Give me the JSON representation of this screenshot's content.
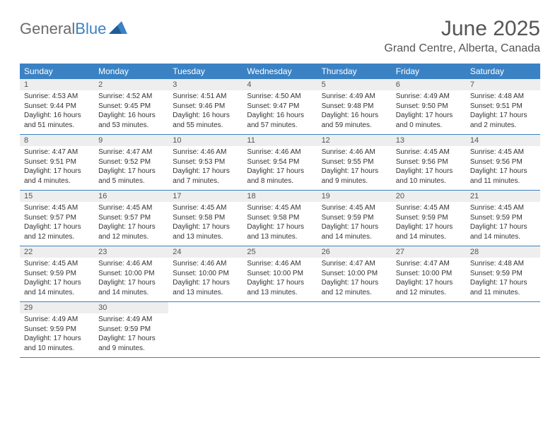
{
  "logo": {
    "text1": "General",
    "text2": "Blue"
  },
  "title": "June 2025",
  "location": "Grand Centre, Alberta, Canada",
  "colors": {
    "header_bg": "#3b82c4",
    "header_text": "#ffffff",
    "daynum_bg": "#eeeeee",
    "text": "#333333",
    "logo_gray": "#6b6b6b",
    "logo_blue": "#3b82c4"
  },
  "day_headers": [
    "Sunday",
    "Monday",
    "Tuesday",
    "Wednesday",
    "Thursday",
    "Friday",
    "Saturday"
  ],
  "weeks": [
    [
      {
        "n": "1",
        "sr": "Sunrise: 4:53 AM",
        "ss": "Sunset: 9:44 PM",
        "dl": "Daylight: 16 hours and 51 minutes."
      },
      {
        "n": "2",
        "sr": "Sunrise: 4:52 AM",
        "ss": "Sunset: 9:45 PM",
        "dl": "Daylight: 16 hours and 53 minutes."
      },
      {
        "n": "3",
        "sr": "Sunrise: 4:51 AM",
        "ss": "Sunset: 9:46 PM",
        "dl": "Daylight: 16 hours and 55 minutes."
      },
      {
        "n": "4",
        "sr": "Sunrise: 4:50 AM",
        "ss": "Sunset: 9:47 PM",
        "dl": "Daylight: 16 hours and 57 minutes."
      },
      {
        "n": "5",
        "sr": "Sunrise: 4:49 AM",
        "ss": "Sunset: 9:48 PM",
        "dl": "Daylight: 16 hours and 59 minutes."
      },
      {
        "n": "6",
        "sr": "Sunrise: 4:49 AM",
        "ss": "Sunset: 9:50 PM",
        "dl": "Daylight: 17 hours and 0 minutes."
      },
      {
        "n": "7",
        "sr": "Sunrise: 4:48 AM",
        "ss": "Sunset: 9:51 PM",
        "dl": "Daylight: 17 hours and 2 minutes."
      }
    ],
    [
      {
        "n": "8",
        "sr": "Sunrise: 4:47 AM",
        "ss": "Sunset: 9:51 PM",
        "dl": "Daylight: 17 hours and 4 minutes."
      },
      {
        "n": "9",
        "sr": "Sunrise: 4:47 AM",
        "ss": "Sunset: 9:52 PM",
        "dl": "Daylight: 17 hours and 5 minutes."
      },
      {
        "n": "10",
        "sr": "Sunrise: 4:46 AM",
        "ss": "Sunset: 9:53 PM",
        "dl": "Daylight: 17 hours and 7 minutes."
      },
      {
        "n": "11",
        "sr": "Sunrise: 4:46 AM",
        "ss": "Sunset: 9:54 PM",
        "dl": "Daylight: 17 hours and 8 minutes."
      },
      {
        "n": "12",
        "sr": "Sunrise: 4:46 AM",
        "ss": "Sunset: 9:55 PM",
        "dl": "Daylight: 17 hours and 9 minutes."
      },
      {
        "n": "13",
        "sr": "Sunrise: 4:45 AM",
        "ss": "Sunset: 9:56 PM",
        "dl": "Daylight: 17 hours and 10 minutes."
      },
      {
        "n": "14",
        "sr": "Sunrise: 4:45 AM",
        "ss": "Sunset: 9:56 PM",
        "dl": "Daylight: 17 hours and 11 minutes."
      }
    ],
    [
      {
        "n": "15",
        "sr": "Sunrise: 4:45 AM",
        "ss": "Sunset: 9:57 PM",
        "dl": "Daylight: 17 hours and 12 minutes."
      },
      {
        "n": "16",
        "sr": "Sunrise: 4:45 AM",
        "ss": "Sunset: 9:57 PM",
        "dl": "Daylight: 17 hours and 12 minutes."
      },
      {
        "n": "17",
        "sr": "Sunrise: 4:45 AM",
        "ss": "Sunset: 9:58 PM",
        "dl": "Daylight: 17 hours and 13 minutes."
      },
      {
        "n": "18",
        "sr": "Sunrise: 4:45 AM",
        "ss": "Sunset: 9:58 PM",
        "dl": "Daylight: 17 hours and 13 minutes."
      },
      {
        "n": "19",
        "sr": "Sunrise: 4:45 AM",
        "ss": "Sunset: 9:59 PM",
        "dl": "Daylight: 17 hours and 14 minutes."
      },
      {
        "n": "20",
        "sr": "Sunrise: 4:45 AM",
        "ss": "Sunset: 9:59 PM",
        "dl": "Daylight: 17 hours and 14 minutes."
      },
      {
        "n": "21",
        "sr": "Sunrise: 4:45 AM",
        "ss": "Sunset: 9:59 PM",
        "dl": "Daylight: 17 hours and 14 minutes."
      }
    ],
    [
      {
        "n": "22",
        "sr": "Sunrise: 4:45 AM",
        "ss": "Sunset: 9:59 PM",
        "dl": "Daylight: 17 hours and 14 minutes."
      },
      {
        "n": "23",
        "sr": "Sunrise: 4:46 AM",
        "ss": "Sunset: 10:00 PM",
        "dl": "Daylight: 17 hours and 14 minutes."
      },
      {
        "n": "24",
        "sr": "Sunrise: 4:46 AM",
        "ss": "Sunset: 10:00 PM",
        "dl": "Daylight: 17 hours and 13 minutes."
      },
      {
        "n": "25",
        "sr": "Sunrise: 4:46 AM",
        "ss": "Sunset: 10:00 PM",
        "dl": "Daylight: 17 hours and 13 minutes."
      },
      {
        "n": "26",
        "sr": "Sunrise: 4:47 AM",
        "ss": "Sunset: 10:00 PM",
        "dl": "Daylight: 17 hours and 12 minutes."
      },
      {
        "n": "27",
        "sr": "Sunrise: 4:47 AM",
        "ss": "Sunset: 10:00 PM",
        "dl": "Daylight: 17 hours and 12 minutes."
      },
      {
        "n": "28",
        "sr": "Sunrise: 4:48 AM",
        "ss": "Sunset: 9:59 PM",
        "dl": "Daylight: 17 hours and 11 minutes."
      }
    ],
    [
      {
        "n": "29",
        "sr": "Sunrise: 4:49 AM",
        "ss": "Sunset: 9:59 PM",
        "dl": "Daylight: 17 hours and 10 minutes."
      },
      {
        "n": "30",
        "sr": "Sunrise: 4:49 AM",
        "ss": "Sunset: 9:59 PM",
        "dl": "Daylight: 17 hours and 9 minutes."
      },
      null,
      null,
      null,
      null,
      null
    ]
  ]
}
